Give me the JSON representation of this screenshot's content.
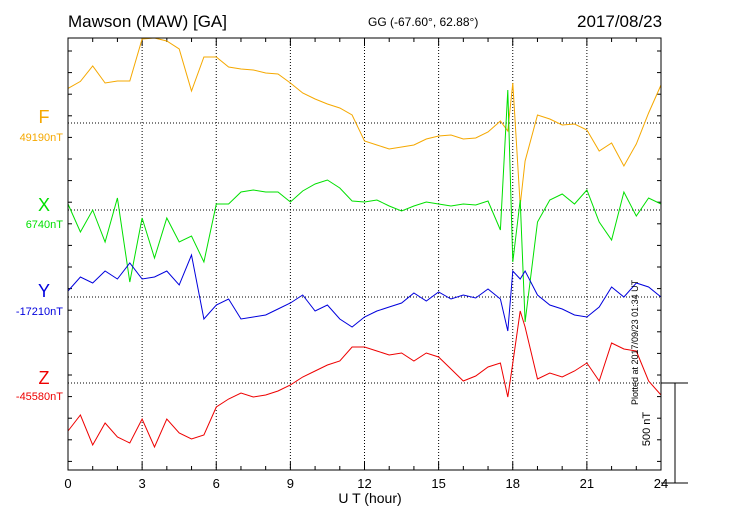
{
  "header": {
    "station": "Mawson (MAW)  [GA]",
    "coords": "GG (-67.60°,  62.88°)",
    "date": "2017/08/23"
  },
  "footer": {
    "plotted": "Plotted at 2017/09/23 01:34 UT"
  },
  "chart_data": {
    "type": "line",
    "title": "Mawson (MAW)  [GA]",
    "xlabel": "U T (hour)",
    "ylabel": "",
    "xlim": [
      0,
      24
    ],
    "xticks": [
      0,
      3,
      6,
      9,
      12,
      15,
      18,
      21,
      24
    ],
    "grid": true,
    "scale_label": "500 nT",
    "scale_nt": 500,
    "series": [
      {
        "name": "F",
        "baseline_label": "49190nT",
        "baseline": 49190,
        "color": "#f5a800",
        "x": [
          0,
          0.5,
          1,
          1.5,
          2,
          2.5,
          3,
          3.5,
          4,
          4.5,
          5,
          5.5,
          6,
          6.5,
          7,
          7.5,
          8,
          8.5,
          9,
          9.5,
          10,
          10.5,
          11,
          11.5,
          12,
          12.5,
          13,
          13.5,
          14,
          14.5,
          15,
          15.5,
          16,
          16.5,
          17,
          17.5,
          17.8,
          18,
          18.3,
          18.5,
          19,
          19.5,
          20,
          20.5,
          21,
          21.5,
          22,
          22.5,
          23,
          23.5,
          24
        ],
        "y": [
          49363,
          49398,
          49475,
          49390,
          49400,
          49400,
          49610,
          49620,
          49600,
          49560,
          49350,
          49520,
          49520,
          49470,
          49460,
          49455,
          49440,
          49435,
          49390,
          49340,
          49310,
          49285,
          49265,
          49230,
          49100,
          49080,
          49060,
          49070,
          49080,
          49110,
          49125,
          49130,
          49110,
          49115,
          49145,
          49200,
          49150,
          49390,
          48780,
          49000,
          49230,
          49210,
          49180,
          49185,
          49155,
          49050,
          49090,
          48975,
          49085,
          49240,
          49380
        ]
      },
      {
        "name": "X",
        "baseline_label": "6740nT",
        "baseline": 6740,
        "color": "#00e000",
        "x": [
          0,
          0.5,
          1,
          1.5,
          2,
          2.5,
          3,
          3.5,
          4,
          4.5,
          5,
          5.5,
          6,
          6.5,
          7,
          7.5,
          8,
          8.5,
          9,
          9.5,
          10,
          10.5,
          11,
          11.5,
          12,
          12.5,
          13,
          13.5,
          14,
          14.5,
          15,
          15.5,
          16,
          16.5,
          17,
          17.5,
          17.8,
          18,
          18.3,
          18.5,
          19,
          19.5,
          20,
          20.5,
          21,
          21.5,
          22,
          22.5,
          23,
          23.5,
          24
        ],
        "y": [
          6770,
          6630,
          6740,
          6580,
          6800,
          6380,
          6700,
          6500,
          6700,
          6580,
          6610,
          6480,
          6770,
          6770,
          6830,
          6840,
          6830,
          6830,
          6780,
          6835,
          6870,
          6890,
          6850,
          6785,
          6780,
          6790,
          6760,
          6735,
          6760,
          6780,
          6770,
          6760,
          6770,
          6765,
          6785,
          6640,
          7340,
          6480,
          6790,
          6180,
          6680,
          6790,
          6820,
          6770,
          6840,
          6680,
          6590,
          6830,
          6710,
          6800,
          6770
        ]
      },
      {
        "name": "Y",
        "baseline_label": "-17210nT",
        "baseline": -17210,
        "color": "#0000dd",
        "x": [
          0,
          0.5,
          1,
          1.5,
          2,
          2.5,
          3,
          3.5,
          4,
          4.5,
          5,
          5.5,
          6,
          6.5,
          7,
          7.5,
          8,
          8.5,
          9,
          9.5,
          10,
          10.5,
          11,
          11.5,
          12,
          12.5,
          13,
          13.5,
          14,
          14.5,
          15,
          15.5,
          16,
          16.5,
          17,
          17.5,
          17.8,
          18,
          18.3,
          18.5,
          19,
          19.5,
          20,
          20.5,
          21,
          21.5,
          22,
          22.5,
          23,
          23.5,
          24
        ],
        "y": [
          -17180,
          -17110,
          -17140,
          -17080,
          -17120,
          -17040,
          -17120,
          -17110,
          -17080,
          -17150,
          -17000,
          -17320,
          -17250,
          -17220,
          -17320,
          -17310,
          -17300,
          -17270,
          -17240,
          -17200,
          -17280,
          -17250,
          -17320,
          -17360,
          -17310,
          -17280,
          -17260,
          -17240,
          -17190,
          -17230,
          -17185,
          -17220,
          -17200,
          -17215,
          -17170,
          -17220,
          -17380,
          -17080,
          -17120,
          -17080,
          -17200,
          -17250,
          -17270,
          -17300,
          -17310,
          -17260,
          -17160,
          -17210,
          -17140,
          -17160,
          -17210
        ]
      },
      {
        "name": "Z",
        "baseline_label": "-45580nT",
        "baseline": -45580,
        "color": "#ee0000",
        "x": [
          0,
          0.5,
          1,
          1.5,
          2,
          2.5,
          3,
          3.5,
          4,
          4.5,
          5,
          5.5,
          6,
          6.5,
          7,
          7.5,
          8,
          8.5,
          9,
          9.5,
          10,
          10.5,
          11,
          11.5,
          12,
          12.5,
          13,
          13.5,
          14,
          14.5,
          15,
          15.5,
          16,
          16.5,
          17,
          17.5,
          17.8,
          18,
          18.3,
          18.5,
          19,
          19.5,
          20,
          20.5,
          21,
          21.5,
          22,
          22.5,
          23,
          23.5,
          24
        ],
        "y": [
          -45820,
          -45740,
          -45890,
          -45780,
          -45850,
          -45880,
          -45760,
          -45900,
          -45760,
          -45830,
          -45860,
          -45840,
          -45700,
          -45660,
          -45630,
          -45650,
          -45640,
          -45620,
          -45590,
          -45550,
          -45520,
          -45490,
          -45470,
          -45400,
          -45400,
          -45420,
          -45440,
          -45430,
          -45470,
          -45430,
          -45450,
          -45510,
          -45570,
          -45545,
          -45500,
          -45480,
          -45650,
          -45480,
          -45220,
          -45300,
          -45560,
          -45530,
          -45550,
          -45520,
          -45480,
          -45570,
          -45380,
          -45410,
          -45420,
          -45570,
          -45640
        ]
      }
    ]
  }
}
